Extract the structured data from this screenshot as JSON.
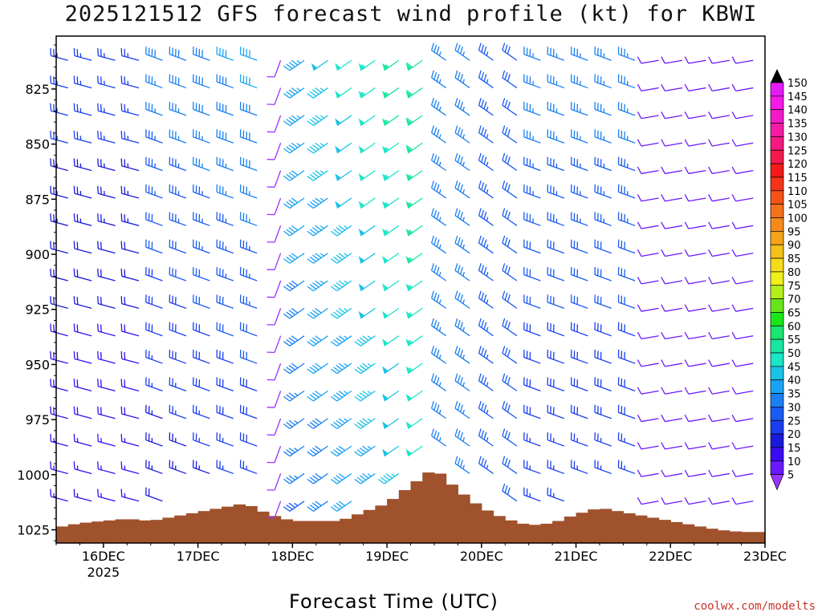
{
  "title": "2025121512 GFS forecast wind profile (kt) for KBWI",
  "xlabel": "Forecast Time (UTC)",
  "credit": "coolwx.com/modelts",
  "chart_data": {
    "type": "wind-profile",
    "title": "2025121512 GFS forecast wind profile (kt) for KBWI",
    "xlabel": "Forecast Time (UTC)",
    "ylabel": "",
    "x_ticks": [
      "16DEC",
      "17DEC",
      "18DEC",
      "19DEC",
      "20DEC",
      "21DEC",
      "22DEC",
      "23DEC"
    ],
    "x_year": "2025",
    "y_ticks": [
      825,
      850,
      875,
      900,
      925,
      950,
      975,
      1000,
      1025
    ],
    "xlim_days": [
      "15DEC 12Z",
      "23DEC 00Z"
    ],
    "ylim_hpa": [
      1031,
      801
    ],
    "colorbar": {
      "unit": "kt",
      "levels": [
        5,
        10,
        15,
        20,
        25,
        30,
        35,
        40,
        45,
        50,
        55,
        60,
        65,
        70,
        75,
        80,
        85,
        90,
        95,
        100,
        105,
        110,
        115,
        120,
        125,
        130,
        135,
        140,
        145,
        150
      ],
      "colors": [
        "#9933ff",
        "#6a19ff",
        "#3b0bf5",
        "#1a1adb",
        "#1a3df2",
        "#1a5bf2",
        "#1a80f2",
        "#1aa3f2",
        "#1ac2e6",
        "#1ae6c8",
        "#1ae6a3",
        "#1ae670",
        "#1ae61a",
        "#66e61a",
        "#b3f01a",
        "#f0f01a",
        "#f5dc1a",
        "#f5c01a",
        "#f5a31a",
        "#f58a1a",
        "#f5701a",
        "#f5521a",
        "#f5331a",
        "#f51a1a",
        "#f51a4d",
        "#f51a80",
        "#f51aa3",
        "#f51ac8",
        "#f51ae6",
        "#e61af5"
      ]
    },
    "surface_pressure_hpa": {
      "time_hours": [
        0,
        6,
        12,
        18,
        24,
        30,
        36,
        42,
        48,
        54,
        60,
        66,
        72,
        78,
        84,
        90,
        96,
        102,
        108,
        114,
        120,
        126,
        132,
        138,
        144,
        150,
        156,
        162,
        168,
        174,
        180
      ],
      "values": [
        1024,
        1022,
        1021,
        1020,
        1021,
        1019,
        1017,
        1015,
        1013,
        1018,
        1021,
        1021,
        1021,
        1017,
        1013,
        1005,
        997,
        1007,
        1015,
        1020,
        1023,
        1022,
        1018,
        1015,
        1017,
        1019,
        1021,
        1023,
        1025,
        1026,
        1026
      ]
    },
    "wind_samples": [
      {
        "day": "16DEC",
        "level_hpa": 850,
        "speed_kt": 25,
        "dir_deg": 280
      },
      {
        "day": "17DEC",
        "level_hpa": 850,
        "speed_kt": 35,
        "dir_deg": 290
      },
      {
        "day": "18DEC",
        "level_hpa": 850,
        "speed_kt": 10,
        "dir_deg": 200
      },
      {
        "day": "19DEC",
        "level_hpa": 850,
        "speed_kt": 60,
        "dir_deg": 240
      },
      {
        "day": "20DEC",
        "level_hpa": 850,
        "speed_kt": 40,
        "dir_deg": 300
      },
      {
        "day": "21DEC",
        "level_hpa": 850,
        "speed_kt": 35,
        "dir_deg": 290
      },
      {
        "day": "22DEC",
        "level_hpa": 850,
        "speed_kt": 15,
        "dir_deg": 260
      }
    ]
  }
}
